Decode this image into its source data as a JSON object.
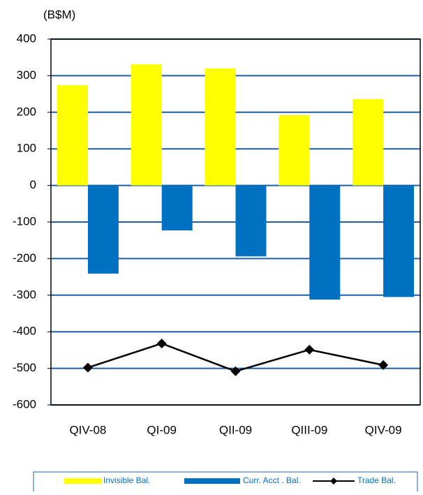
{
  "chart_data": {
    "type": "bar",
    "y_label": "(B$M)",
    "categories": [
      "QIV-08",
      "QI-09",
      "QII-09",
      "QIII-09",
      "QIV-09"
    ],
    "series": [
      {
        "name": "Invisible Bal.",
        "color": "#ffff00",
        "type": "bar",
        "values": [
          274,
          331,
          320,
          192,
          236
        ]
      },
      {
        "name": "Curr. Acct . Bal.",
        "color": "#0070c0",
        "type": "bar",
        "values": [
          -241,
          -123,
          -194,
          -312,
          -305
        ]
      },
      {
        "name": "Trade Bal.",
        "color": "#000000",
        "type": "line",
        "values": [
          -498,
          -432,
          -508,
          -449,
          -491
        ]
      }
    ],
    "ylim": [
      -600,
      400
    ],
    "yticks": [
      -600,
      -500,
      -400,
      -300,
      -200,
      -100,
      0,
      100,
      200,
      300,
      400
    ],
    "grid": true,
    "legend": "bottom"
  }
}
